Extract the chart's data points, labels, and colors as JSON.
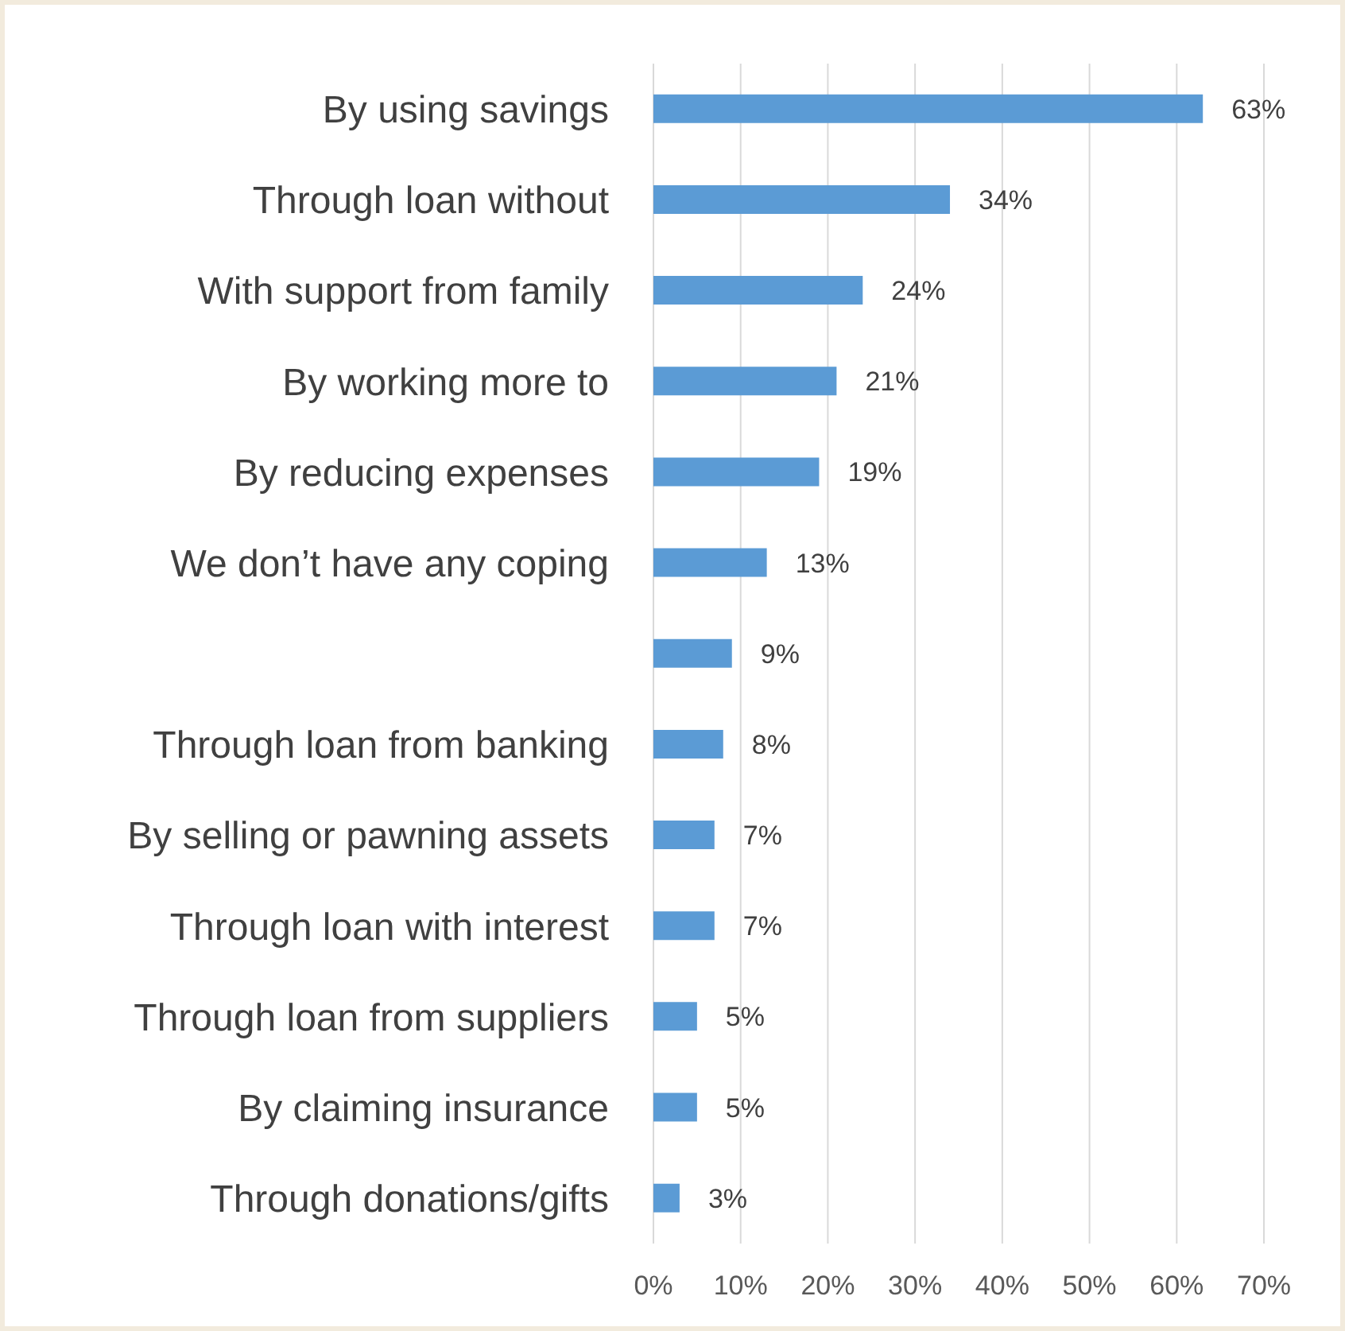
{
  "chart_data": {
    "type": "bar",
    "orientation": "horizontal",
    "categories": [
      "By using savings",
      "Through loan without",
      "With support from family",
      "By working more to",
      "By reducing expenses",
      "We don’t have any coping",
      null,
      "Through loan from banking",
      "By selling or pawning assets",
      "Through loan with interest",
      "Through loan from suppliers",
      "By claiming insurance",
      "Through donations/gifts"
    ],
    "values": [
      63,
      34,
      24,
      21,
      19,
      13,
      9,
      8,
      7,
      7,
      5,
      5,
      3
    ],
    "value_labels": [
      "63%",
      "34%",
      "24%",
      "21%",
      "19%",
      "13%",
      "9%",
      "8%",
      "7%",
      "7%",
      "5%",
      "5%",
      "3%"
    ],
    "color": "#5b9bd5",
    "xlim": [
      0,
      70
    ],
    "xticks": [
      {
        "value": 0,
        "label": "0%"
      },
      {
        "value": 10,
        "label": "10%"
      },
      {
        "value": 20,
        "label": "20%"
      },
      {
        "value": 30,
        "label": "30%"
      },
      {
        "value": 40,
        "label": "40%"
      },
      {
        "value": 50,
        "label": "50%"
      },
      {
        "value": 60,
        "label": "60%"
      },
      {
        "value": 70,
        "label": "70%"
      }
    ],
    "grid": "x",
    "legend": false
  }
}
